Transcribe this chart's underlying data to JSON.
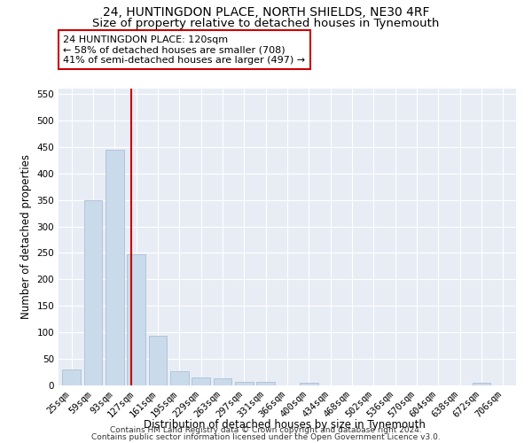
{
  "title1": "24, HUNTINGDON PLACE, NORTH SHIELDS, NE30 4RF",
  "title2": "Size of property relative to detached houses in Tynemouth",
  "xlabel": "Distribution of detached houses by size in Tynemouth",
  "ylabel": "Number of detached properties",
  "bar_labels": [
    "25sqm",
    "59sqm",
    "93sqm",
    "127sqm",
    "161sqm",
    "195sqm",
    "229sqm",
    "263sqm",
    "297sqm",
    "331sqm",
    "366sqm",
    "400sqm",
    "434sqm",
    "468sqm",
    "502sqm",
    "536sqm",
    "570sqm",
    "604sqm",
    "638sqm",
    "672sqm",
    "706sqm"
  ],
  "bar_values": [
    30,
    350,
    445,
    248,
    93,
    27,
    15,
    13,
    7,
    6,
    0,
    5,
    0,
    0,
    0,
    0,
    0,
    0,
    0,
    5,
    0
  ],
  "bar_color": "#c9daea",
  "bar_edgecolor": "#a0b8d0",
  "vline_x": 2.78,
  "vline_color": "#cc0000",
  "annotation_lines": [
    "24 HUNTINGDON PLACE: 120sqm",
    "← 58% of detached houses are smaller (708)",
    "41% of semi-detached houses are larger (497) →"
  ],
  "annotation_box_color": "#ffffff",
  "annotation_box_edgecolor": "#cc0000",
  "ylim": [
    0,
    560
  ],
  "yticks": [
    0,
    50,
    100,
    150,
    200,
    250,
    300,
    350,
    400,
    450,
    500,
    550
  ],
  "bg_color": "#e8edf5",
  "footer1": "Contains HM Land Registry data © Crown copyright and database right 2024.",
  "footer2": "Contains public sector information licensed under the Open Government Licence v3.0.",
  "title1_fontsize": 10,
  "title2_fontsize": 9.5,
  "xlabel_fontsize": 8.5,
  "ylabel_fontsize": 8.5,
  "tick_fontsize": 7.5,
  "annotation_fontsize": 8,
  "footer_fontsize": 6.5
}
